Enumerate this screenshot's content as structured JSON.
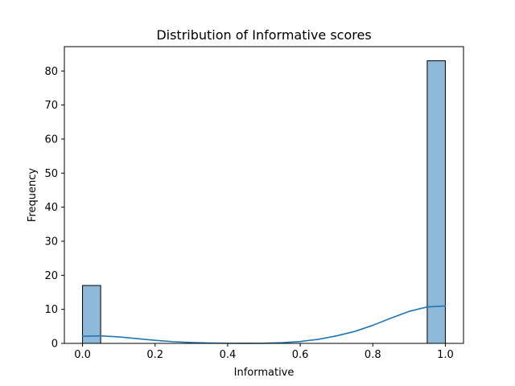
{
  "chart_data": {
    "type": "bar",
    "subtype": "histogram",
    "title": "Distribution of Informative scores",
    "xlabel": "Informative",
    "ylabel": "Frequency",
    "xlim": [
      -0.05,
      1.05
    ],
    "ylim": [
      0,
      87.15
    ],
    "xticks": [
      0.0,
      0.2,
      0.4,
      0.6,
      0.8,
      1.0
    ],
    "xtick_labels": [
      "0.0",
      "0.2",
      "0.4",
      "0.6",
      "0.8",
      "1.0"
    ],
    "yticks": [
      0,
      10,
      20,
      30,
      40,
      50,
      60,
      70,
      80
    ],
    "ytick_labels": [
      "0",
      "10",
      "20",
      "30",
      "40",
      "50",
      "60",
      "70",
      "80"
    ],
    "bins": [
      {
        "x0": 0.0,
        "x1": 0.05,
        "value": 17
      },
      {
        "x0": 0.95,
        "x1": 1.0,
        "value": 83
      }
    ],
    "kde": {
      "x": [
        0.0,
        0.05,
        0.1,
        0.15,
        0.2,
        0.25,
        0.3,
        0.35,
        0.4,
        0.45,
        0.5,
        0.55,
        0.6,
        0.65,
        0.7,
        0.75,
        0.8,
        0.85,
        0.9,
        0.95,
        1.0
      ],
      "y": [
        2.1,
        2.2,
        1.9,
        1.4,
        0.9,
        0.5,
        0.25,
        0.1,
        0.03,
        0.02,
        0.05,
        0.2,
        0.55,
        1.2,
        2.2,
        3.5,
        5.3,
        7.4,
        9.4,
        10.7,
        11.0
      ]
    },
    "colors": {
      "bar_fill": "#8fb9d9",
      "bar_edge": "#000000",
      "kde_line": "#1f77b4"
    },
    "grid": false,
    "legend": "none"
  }
}
